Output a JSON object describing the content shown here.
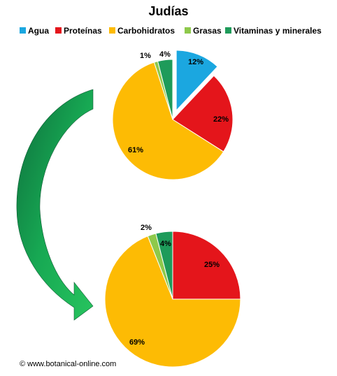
{
  "title": "Judías",
  "credit": "© www.botanical-online.com",
  "legend": [
    {
      "label": "Agua",
      "color": "#1ba7e0"
    },
    {
      "label": "Proteínas",
      "color": "#e4151b"
    },
    {
      "label": "Carbohidratos",
      "color": "#fdbb04"
    },
    {
      "label": "Grasas",
      "color": "#8ec94b"
    },
    {
      "label": "Vitaminas y minerales",
      "color": "#1e9b5a"
    }
  ],
  "chart_data": [
    {
      "type": "pie",
      "categories": [
        "Agua",
        "Proteínas",
        "Carbohidratos",
        "Grasas",
        "Vitaminas y minerales"
      ],
      "values": [
        12,
        22,
        61,
        1,
        4
      ],
      "labels": [
        "12%",
        "22%",
        "61%",
        "1%",
        "4%"
      ],
      "exploded": "Agua"
    },
    {
      "type": "pie",
      "categories": [
        "Proteínas",
        "Carbohidratos",
        "Grasas",
        "Vitaminas y minerales"
      ],
      "values": [
        25,
        69,
        2,
        4
      ],
      "labels": [
        "25%",
        "69%",
        "2%",
        "4%"
      ]
    }
  ]
}
